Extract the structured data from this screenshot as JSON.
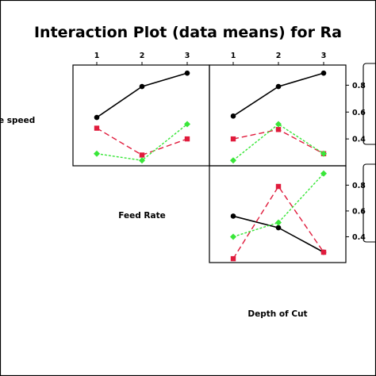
{
  "chart_data": {
    "type": "line",
    "title": "Interaction Plot (data means) for Ra",
    "factors": [
      "e speed",
      "Feed Rate",
      "Depth of Cut"
    ],
    "levels": [
      "1",
      "2",
      "3"
    ],
    "y_ticks": [
      "0.4",
      "0.6",
      "0.8"
    ],
    "ylim": [
      0.2,
      0.95
    ],
    "grid": false,
    "panels": [
      {
        "row_factor": "e speed",
        "column_factor": "Feed Rate",
        "series": [
          {
            "color": "#000000",
            "marker": "circle",
            "line": "solid",
            "values": [
              0.56,
              0.79,
              0.89
            ]
          },
          {
            "color": "#e01b3c",
            "marker": "square",
            "line": "dashed",
            "values": [
              0.48,
              0.28,
              0.4
            ]
          },
          {
            "color": "#39e639",
            "marker": "diamond",
            "line": "dotted",
            "values": [
              0.29,
              0.24,
              0.51
            ]
          }
        ]
      },
      {
        "row_factor": "e speed",
        "column_factor": "Depth of Cut",
        "series": [
          {
            "color": "#000000",
            "marker": "circle",
            "line": "solid",
            "values": [
              0.57,
              0.79,
              0.89
            ]
          },
          {
            "color": "#e01b3c",
            "marker": "square",
            "line": "dashed",
            "values": [
              0.4,
              0.47,
              0.29
            ]
          },
          {
            "color": "#39e639",
            "marker": "diamond",
            "line": "dotted",
            "values": [
              0.24,
              0.51,
              0.29
            ]
          }
        ]
      },
      {
        "row_factor": "Feed Rate",
        "column_factor": "Depth of Cut",
        "series": [
          {
            "color": "#000000",
            "marker": "circle",
            "line": "solid",
            "values": [
              0.56,
              0.47,
              0.28
            ]
          },
          {
            "color": "#e01b3c",
            "marker": "square",
            "line": "dashed",
            "values": [
              0.23,
              0.79,
              0.28
            ]
          },
          {
            "color": "#39e639",
            "marker": "diamond",
            "line": "dotted",
            "values": [
              0.4,
              0.51,
              0.89
            ]
          }
        ]
      }
    ]
  }
}
